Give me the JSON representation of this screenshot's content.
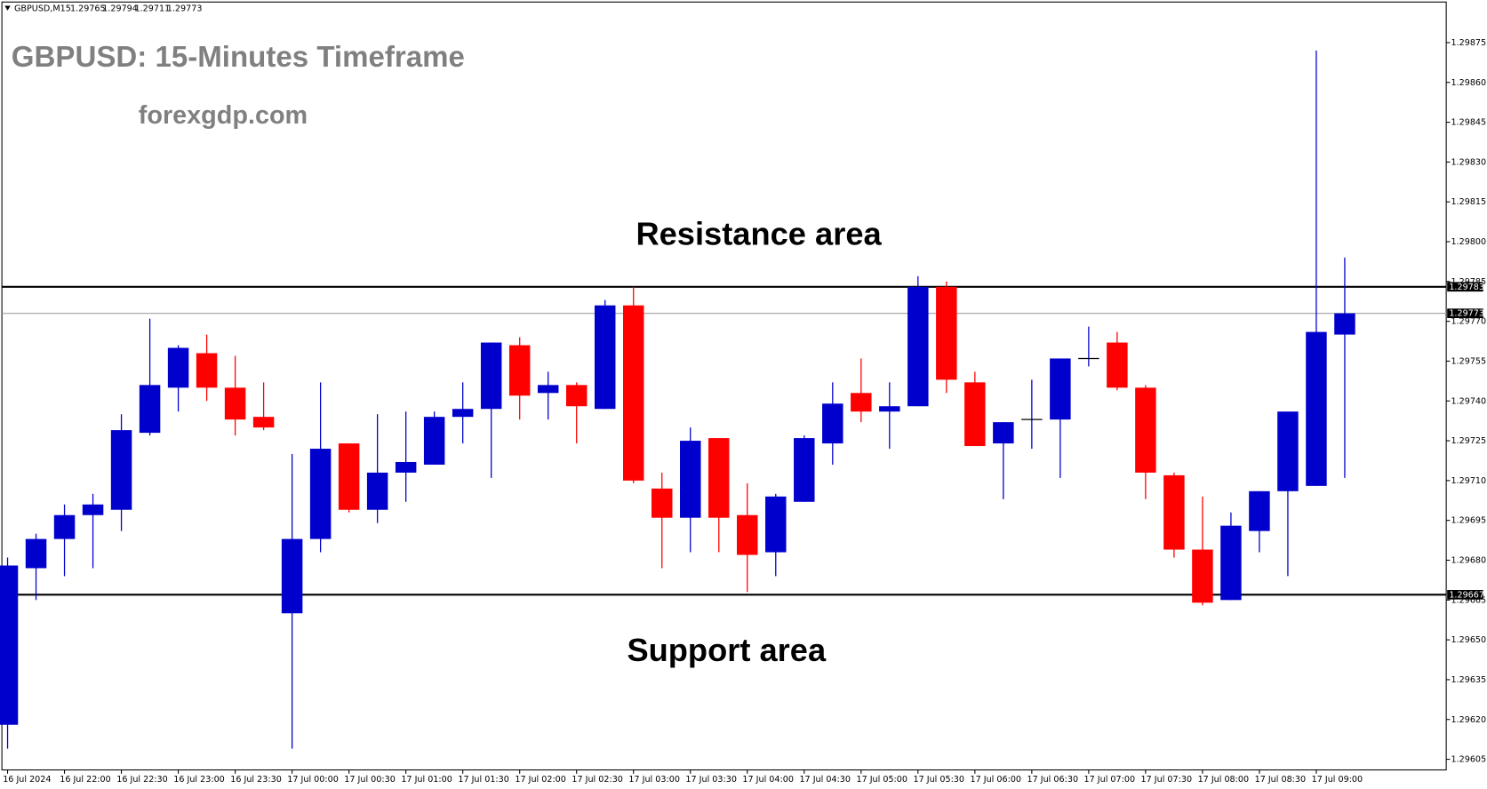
{
  "chart_data": {
    "type": "candlestick",
    "symbol": "GBPUSD,M15",
    "title": "GBPUSD: 15-Minutes Timeframe",
    "subtitle": "forexgdp.com",
    "annotations": [
      "Resistance area",
      "Support area"
    ],
    "categories": [
      "16 Jul 2024",
      null,
      "16 Jul 22:00",
      null,
      "16 Jul 22:30",
      null,
      "16 Jul 23:00",
      null,
      "16 Jul 23:30",
      null,
      "17 Jul 00:00",
      null,
      "17 Jul 00:30",
      null,
      "17 Jul 01:00",
      null,
      "17 Jul 01:30",
      null,
      "17 Jul 02:00",
      null,
      "17 Jul 02:30",
      null,
      "17 Jul 03:00",
      null,
      "17 Jul 03:30",
      null,
      "17 Jul 04:00",
      null,
      "17 Jul 04:30",
      null,
      "17 Jul 05:00",
      null,
      "17 Jul 05:30",
      null,
      "17 Jul 06:00",
      null,
      "17 Jul 06:30",
      null,
      "17 Jul 07:00",
      null,
      "17 Jul 07:30",
      null,
      "17 Jul 08:00",
      null,
      "17 Jul 08:30",
      null,
      "17 Jul 09:00",
      null
    ],
    "open": [
      1.29618,
      1.29677,
      1.29688,
      1.29697,
      1.29699,
      1.29728,
      1.29745,
      1.29758,
      1.29745,
      1.29734,
      1.2966,
      1.29688,
      1.29724,
      1.29699,
      1.29713,
      1.29716,
      1.29734,
      1.29737,
      1.29761,
      1.29743,
      1.29746,
      1.29737,
      1.29776,
      1.29707,
      1.29696,
      1.29726,
      1.29697,
      1.29683,
      1.29702,
      1.29724,
      1.29743,
      1.29736,
      1.29738,
      1.29783,
      1.29747,
      1.29724,
      1.29733,
      1.29733,
      1.29756,
      1.29762,
      1.29745,
      1.29712,
      1.29684,
      1.29665,
      1.29691,
      1.29706,
      1.29708,
      1.29765
    ],
    "high": [
      1.29681,
      1.2969,
      1.29701,
      1.29705,
      1.29735,
      1.29771,
      1.29761,
      1.29765,
      1.29757,
      1.29747,
      1.2972,
      1.29747,
      1.29724,
      1.29735,
      1.29736,
      1.29736,
      1.29747,
      1.29762,
      1.29764,
      1.29751,
      1.29747,
      1.29778,
      1.29783,
      1.29713,
      1.2973,
      1.29726,
      1.29709,
      1.29705,
      1.29727,
      1.29747,
      1.29756,
      1.29747,
      1.29787,
      1.29785,
      1.29751,
      1.29732,
      1.29748,
      1.29756,
      1.29768,
      1.29766,
      1.29746,
      1.29713,
      1.29704,
      1.29698,
      1.29706,
      1.29736,
      1.29872,
      1.29794
    ],
    "low": [
      1.29609,
      1.29665,
      1.29674,
      1.29677,
      1.29691,
      1.29727,
      1.29736,
      1.2974,
      1.29727,
      1.29729,
      1.29609,
      1.29683,
      1.29698,
      1.29694,
      1.29702,
      1.29716,
      1.29724,
      1.29711,
      1.29733,
      1.29733,
      1.29724,
      1.29737,
      1.29709,
      1.29677,
      1.29683,
      1.29683,
      1.29668,
      1.29674,
      1.29702,
      1.29716,
      1.29732,
      1.29722,
      1.29738,
      1.29743,
      1.29723,
      1.29703,
      1.29722,
      1.29711,
      1.29753,
      1.29744,
      1.29703,
      1.29681,
      1.29663,
      1.29665,
      1.29683,
      1.29674,
      1.29708,
      1.29711
    ],
    "close": [
      1.29678,
      1.29688,
      1.29697,
      1.29701,
      1.29729,
      1.29746,
      1.2976,
      1.29745,
      1.29733,
      1.2973,
      1.29688,
      1.29722,
      1.29699,
      1.29713,
      1.29717,
      1.29734,
      1.29737,
      1.29762,
      1.29742,
      1.29746,
      1.29738,
      1.29776,
      1.2971,
      1.29696,
      1.29725,
      1.29696,
      1.29682,
      1.29704,
      1.29726,
      1.29739,
      1.29736,
      1.29738,
      1.29783,
      1.29748,
      1.29723,
      1.29732,
      1.29733,
      1.29756,
      1.29756,
      1.29745,
      1.29713,
      1.29684,
      1.29664,
      1.29693,
      1.29706,
      1.29736,
      1.29766,
      1.29773
    ],
    "up_color": "#0000cd",
    "down_color": "#ff0000",
    "levels": [
      {
        "value": 1.29783,
        "color": "#000000"
      },
      {
        "value": 1.29667,
        "color": "#000000"
      },
      {
        "value": 1.29773,
        "color": "#a0a0a0"
      }
    ],
    "ylim": [
      1.29601,
      1.29891
    ],
    "yticks": [
      1.29875,
      {
        "value": 1.2986,
        "label": "1.29860"
      },
      1.29845,
      {
        "value": 1.2983,
        "label": "1.29830"
      },
      1.29815,
      {
        "value": 1.298,
        "label": "1.29800"
      },
      1.29785,
      {
        "value": 1.2977,
        "label": "1.29770"
      },
      1.29755,
      {
        "value": 1.2974,
        "label": "1.29740"
      },
      1.29725,
      {
        "value": 1.2971,
        "label": "1.29710"
      },
      1.29695,
      {
        "value": 1.2968,
        "label": "1.29680"
      },
      1.29665,
      {
        "value": 1.2965,
        "label": "1.29650"
      },
      1.29635,
      {
        "value": 1.2962,
        "label": "1.29620"
      },
      1.29605
    ]
  }
}
